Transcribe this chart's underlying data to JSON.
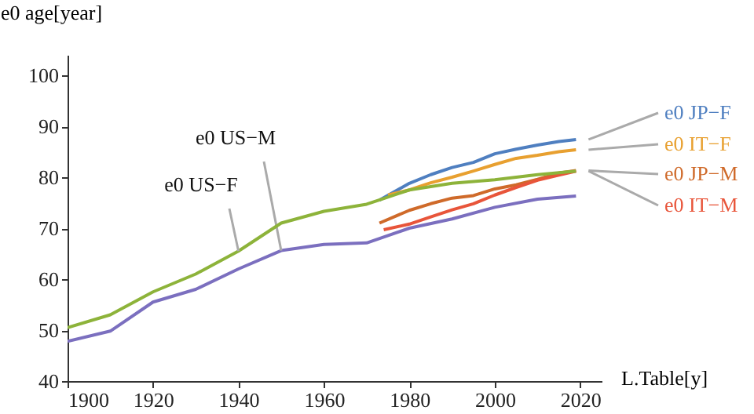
{
  "chart_data": {
    "type": "line",
    "xlabel": "L.Table[y]",
    "ylabel": "e0 age[year]",
    "xlim": [
      1900,
      2025
    ],
    "ylim": [
      40,
      104
    ],
    "xticks": [
      1900,
      1920,
      1940,
      1960,
      1980,
      2000,
      2020
    ],
    "yticks": [
      40,
      50,
      60,
      70,
      80,
      90,
      100
    ],
    "grid": false,
    "legend": "right",
    "marker": "none",
    "line_style": "solid",
    "series": [
      {
        "name": "e0 JP−F",
        "color": "#4f7fc0",
        "x": [
          1973,
          1980,
          1985,
          1990,
          1995,
          2000,
          2005,
          2010,
          2015,
          2019
        ],
        "values": [
          75.5,
          78.8,
          80.5,
          81.9,
          82.9,
          84.6,
          85.5,
          86.3,
          87.0,
          87.4
        ]
      },
      {
        "name": "e0 IT−F",
        "color": "#e8a030",
        "x": [
          1975,
          1980,
          1985,
          1990,
          1995,
          2000,
          2005,
          2010,
          2015,
          2019
        ],
        "values": [
          76.5,
          77.5,
          78.9,
          80.0,
          81.2,
          82.5,
          83.7,
          84.3,
          85.0,
          85.4
        ]
      },
      {
        "name": "e0 JP−M",
        "color": "#cf6a2a",
        "x": [
          1973,
          1980,
          1985,
          1990,
          1995,
          2000,
          2005,
          2010,
          2015,
          2019
        ],
        "values": [
          71.0,
          73.5,
          74.8,
          75.9,
          76.4,
          77.7,
          78.5,
          79.6,
          80.8,
          81.3
        ]
      },
      {
        "name": "e0 IT−M",
        "color": "#e8553a",
        "x": [
          1974,
          1980,
          1985,
          1990,
          1995,
          2000,
          2005,
          2010,
          2015,
          2019
        ],
        "values": [
          69.7,
          70.8,
          72.2,
          73.6,
          74.8,
          76.5,
          78.0,
          79.4,
          80.4,
          81.2
        ]
      },
      {
        "name": "e0 US−M",
        "color": "#7b6fbf",
        "x": [
          1900,
          1910,
          1920,
          1930,
          1940,
          1950,
          1960,
          1970,
          1980,
          1990,
          2000,
          2010,
          2019
        ],
        "values": [
          47.8,
          49.8,
          55.5,
          58.0,
          62.0,
          65.6,
          66.8,
          67.1,
          70.0,
          71.8,
          74.1,
          75.7,
          76.3
        ]
      },
      {
        "name": "e0 US−F",
        "color": "#8db33a",
        "x": [
          1900,
          1910,
          1920,
          1930,
          1940,
          1950,
          1960,
          1970,
          1980,
          1990,
          2000,
          2010,
          2019
        ],
        "values": [
          50.5,
          53.0,
          57.5,
          61.0,
          65.5,
          71.0,
          73.3,
          74.7,
          77.5,
          78.8,
          79.5,
          80.5,
          81.2
        ]
      }
    ]
  }
}
